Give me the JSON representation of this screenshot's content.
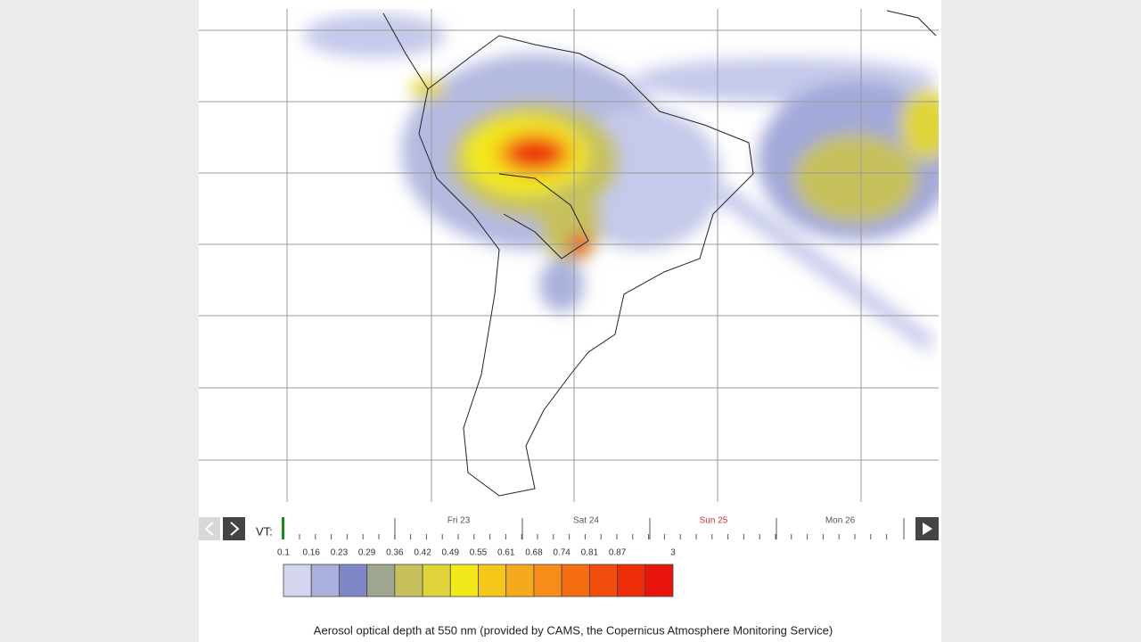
{
  "timeline": {
    "vt_label": "VT:",
    "days": [
      {
        "label": "Fri 23",
        "color": "#555555"
      },
      {
        "label": "Sat 24",
        "color": "#555555"
      },
      {
        "label": "Sun 25",
        "color": "#d03030"
      },
      {
        "label": "Mon 26",
        "color": "#555555"
      }
    ]
  },
  "legend": {
    "values": [
      0.1,
      0.16,
      0.23,
      0.29,
      0.36,
      0.42,
      0.49,
      0.55,
      0.61,
      0.68,
      0.74,
      0.81,
      0.87,
      3
    ],
    "colors": [
      "#d3d6ee",
      "#aab0dc",
      "#7f88c6",
      "#9fa68f",
      "#c6c15d",
      "#e0d43a",
      "#f2e81c",
      "#f5c71a",
      "#f5aa1e",
      "#f68c1a",
      "#f46d13",
      "#f14b0e",
      "#ee2c0a",
      "#e8150d"
    ]
  },
  "caption": "Aerosol optical depth at 550 nm (provided by CAMS, the Copernicus Atmosphere Monitoring Service)"
}
